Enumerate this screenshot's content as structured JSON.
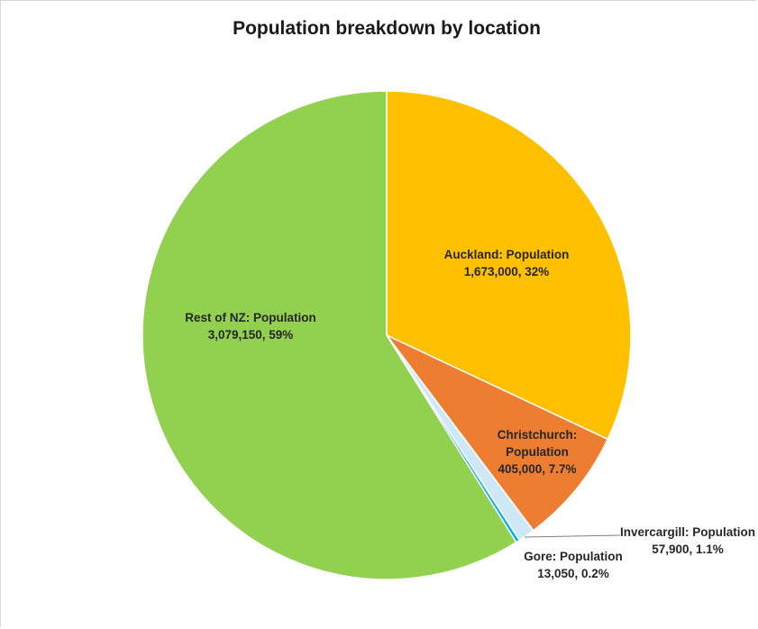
{
  "chart_data": {
    "type": "pie",
    "title": "Population breakdown by location",
    "slices": [
      {
        "name": "Auckland",
        "value": 1673000,
        "percent_label": "32%",
        "color": "#ffc000",
        "label_lines": [
          "Auckland: Population",
          "1,673,000, 32%"
        ]
      },
      {
        "name": "Christchurch",
        "value": 405000,
        "percent_label": "7.7%",
        "color": "#ed7d31",
        "label_lines": [
          "Christchurch:",
          "Population",
          "405,000, 7.7%"
        ]
      },
      {
        "name": "Invercargill",
        "value": 57900,
        "percent_label": "1.1%",
        "color": "#cfe8f7",
        "label_lines": [
          "Invercargill: Population",
          "57,900, 1.1%"
        ]
      },
      {
        "name": "Gore",
        "value": 13050,
        "percent_label": "0.2%",
        "color": "#00b0f0",
        "label_lines": [
          "Gore: Population",
          "13,050, 0.2%"
        ]
      },
      {
        "name": "Rest of NZ",
        "value": 3079150,
        "percent_label": "59%",
        "color": "#92d050",
        "label_lines": [
          "Rest of NZ: Population",
          "3,079,150, 59%"
        ]
      }
    ],
    "start_angle": "12 o'clock",
    "direction": "clockwise",
    "legend": "none"
  }
}
